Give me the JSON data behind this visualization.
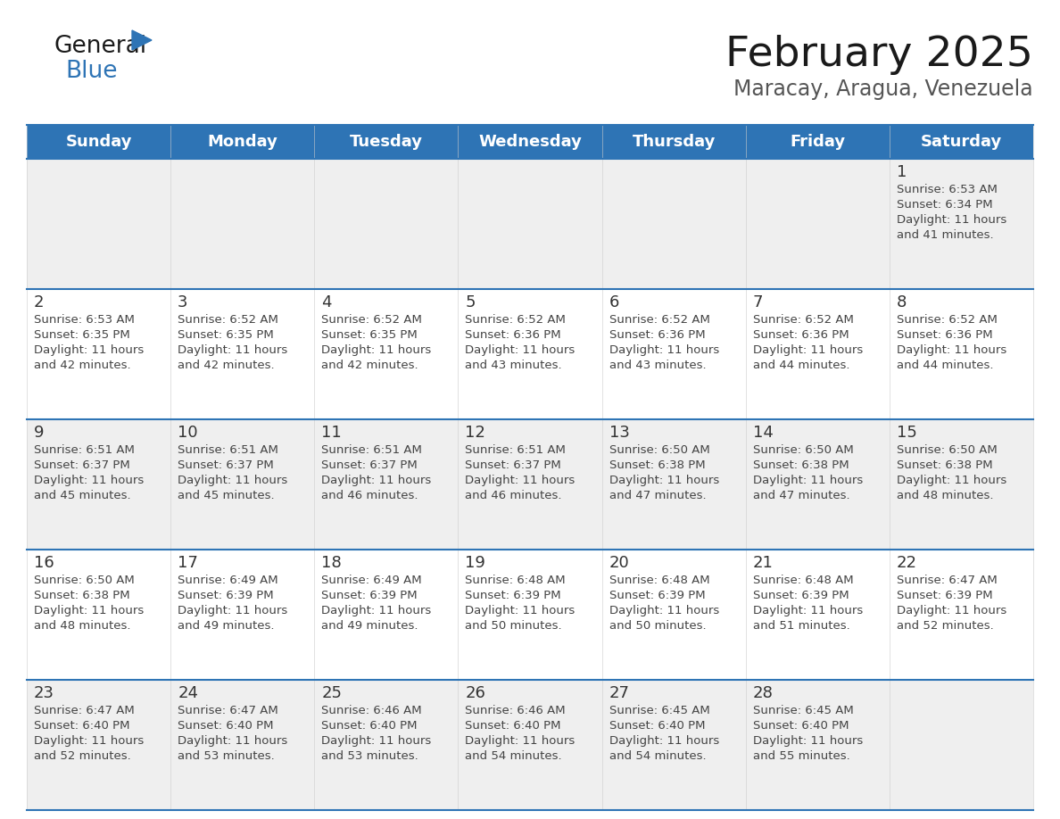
{
  "title": "February 2025",
  "subtitle": "Maracay, Aragua, Venezuela",
  "header_bg": "#2E74B5",
  "header_text_color": "#FFFFFF",
  "row_bg_odd": "#EFEFEF",
  "row_bg_even": "#FFFFFF",
  "day_number_color": "#333333",
  "info_text_color": "#444444",
  "border_color": "#2E74B5",
  "days_of_week": [
    "Sunday",
    "Monday",
    "Tuesday",
    "Wednesday",
    "Thursday",
    "Friday",
    "Saturday"
  ],
  "calendar_data": [
    [
      null,
      null,
      null,
      null,
      null,
      null,
      {
        "day": 1,
        "sunrise": "6:53 AM",
        "sunset": "6:34 PM",
        "daylight": "11 hours and 41 minutes."
      }
    ],
    [
      {
        "day": 2,
        "sunrise": "6:53 AM",
        "sunset": "6:35 PM",
        "daylight": "11 hours and 42 minutes."
      },
      {
        "day": 3,
        "sunrise": "6:52 AM",
        "sunset": "6:35 PM",
        "daylight": "11 hours and 42 minutes."
      },
      {
        "day": 4,
        "sunrise": "6:52 AM",
        "sunset": "6:35 PM",
        "daylight": "11 hours and 42 minutes."
      },
      {
        "day": 5,
        "sunrise": "6:52 AM",
        "sunset": "6:36 PM",
        "daylight": "11 hours and 43 minutes."
      },
      {
        "day": 6,
        "sunrise": "6:52 AM",
        "sunset": "6:36 PM",
        "daylight": "11 hours and 43 minutes."
      },
      {
        "day": 7,
        "sunrise": "6:52 AM",
        "sunset": "6:36 PM",
        "daylight": "11 hours and 44 minutes."
      },
      {
        "day": 8,
        "sunrise": "6:52 AM",
        "sunset": "6:36 PM",
        "daylight": "11 hours and 44 minutes."
      }
    ],
    [
      {
        "day": 9,
        "sunrise": "6:51 AM",
        "sunset": "6:37 PM",
        "daylight": "11 hours and 45 minutes."
      },
      {
        "day": 10,
        "sunrise": "6:51 AM",
        "sunset": "6:37 PM",
        "daylight": "11 hours and 45 minutes."
      },
      {
        "day": 11,
        "sunrise": "6:51 AM",
        "sunset": "6:37 PM",
        "daylight": "11 hours and 46 minutes."
      },
      {
        "day": 12,
        "sunrise": "6:51 AM",
        "sunset": "6:37 PM",
        "daylight": "11 hours and 46 minutes."
      },
      {
        "day": 13,
        "sunrise": "6:50 AM",
        "sunset": "6:38 PM",
        "daylight": "11 hours and 47 minutes."
      },
      {
        "day": 14,
        "sunrise": "6:50 AM",
        "sunset": "6:38 PM",
        "daylight": "11 hours and 47 minutes."
      },
      {
        "day": 15,
        "sunrise": "6:50 AM",
        "sunset": "6:38 PM",
        "daylight": "11 hours and 48 minutes."
      }
    ],
    [
      {
        "day": 16,
        "sunrise": "6:50 AM",
        "sunset": "6:38 PM",
        "daylight": "11 hours and 48 minutes."
      },
      {
        "day": 17,
        "sunrise": "6:49 AM",
        "sunset": "6:39 PM",
        "daylight": "11 hours and 49 minutes."
      },
      {
        "day": 18,
        "sunrise": "6:49 AM",
        "sunset": "6:39 PM",
        "daylight": "11 hours and 49 minutes."
      },
      {
        "day": 19,
        "sunrise": "6:48 AM",
        "sunset": "6:39 PM",
        "daylight": "11 hours and 50 minutes."
      },
      {
        "day": 20,
        "sunrise": "6:48 AM",
        "sunset": "6:39 PM",
        "daylight": "11 hours and 50 minutes."
      },
      {
        "day": 21,
        "sunrise": "6:48 AM",
        "sunset": "6:39 PM",
        "daylight": "11 hours and 51 minutes."
      },
      {
        "day": 22,
        "sunrise": "6:47 AM",
        "sunset": "6:39 PM",
        "daylight": "11 hours and 52 minutes."
      }
    ],
    [
      {
        "day": 23,
        "sunrise": "6:47 AM",
        "sunset": "6:40 PM",
        "daylight": "11 hours and 52 minutes."
      },
      {
        "day": 24,
        "sunrise": "6:47 AM",
        "sunset": "6:40 PM",
        "daylight": "11 hours and 53 minutes."
      },
      {
        "day": 25,
        "sunrise": "6:46 AM",
        "sunset": "6:40 PM",
        "daylight": "11 hours and 53 minutes."
      },
      {
        "day": 26,
        "sunrise": "6:46 AM",
        "sunset": "6:40 PM",
        "daylight": "11 hours and 54 minutes."
      },
      {
        "day": 27,
        "sunrise": "6:45 AM",
        "sunset": "6:40 PM",
        "daylight": "11 hours and 54 minutes."
      },
      {
        "day": 28,
        "sunrise": "6:45 AM",
        "sunset": "6:40 PM",
        "daylight": "11 hours and 55 minutes."
      },
      null
    ]
  ],
  "title_fontsize": 34,
  "subtitle_fontsize": 17,
  "header_fontsize": 13,
  "day_num_fontsize": 13,
  "info_fontsize": 9.5
}
